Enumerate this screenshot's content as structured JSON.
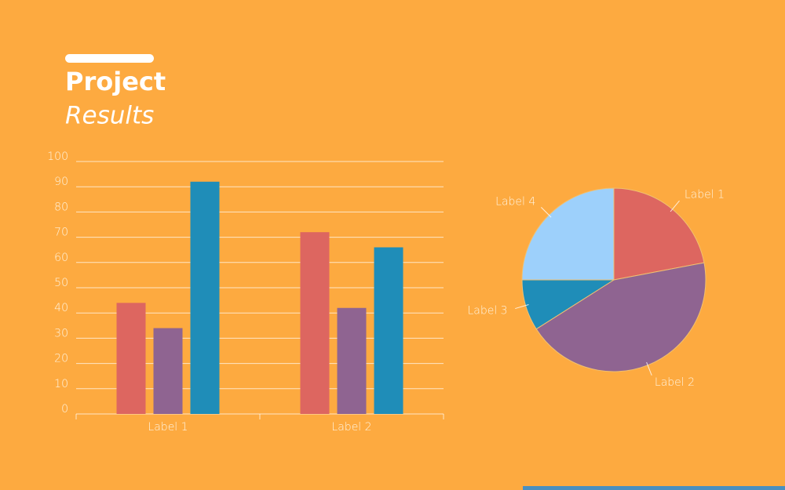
{
  "header": {
    "title": "Project",
    "subtitle": "Results"
  },
  "chart_data": [
    {
      "type": "bar",
      "categories": [
        "Label 1",
        "Label 2"
      ],
      "series": [
        {
          "color": "#dd6660",
          "values": [
            44,
            72
          ]
        },
        {
          "color": "#8f6491",
          "values": [
            34,
            42
          ]
        },
        {
          "color": "#1f8db8",
          "values": [
            92,
            66
          ]
        }
      ],
      "ylim": [
        0,
        100
      ],
      "yticks": [
        0,
        10,
        20,
        30,
        40,
        50,
        60,
        70,
        80,
        90,
        100
      ],
      "grid": true
    },
    {
      "type": "pie",
      "categories": [
        "Label 1",
        "Label 2",
        "Label 3",
        "Label 4"
      ],
      "values": [
        22,
        44,
        9,
        25
      ],
      "colors": [
        "#dd6660",
        "#8f6491",
        "#1f8db8",
        "#9dd0fb"
      ]
    }
  ]
}
